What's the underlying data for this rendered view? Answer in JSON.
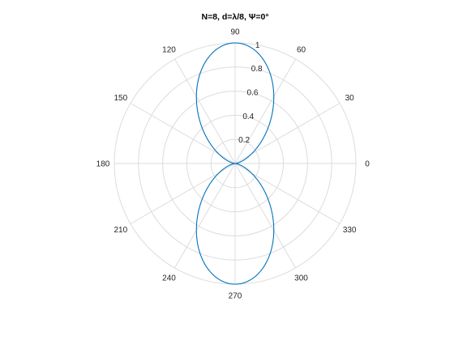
{
  "chart_data": {
    "type": "polar-line",
    "title": "N=8, d=λ/8, Ψ=0°",
    "theta_ticks_deg": [
      0,
      30,
      60,
      90,
      120,
      150,
      180,
      210,
      240,
      270,
      300,
      330
    ],
    "theta_tick_labels": [
      "0",
      "30",
      "60",
      "90",
      "120",
      "150",
      "180",
      "210",
      "240",
      "270",
      "300",
      "330"
    ],
    "r_ticks": [
      0.2,
      0.4,
      0.6,
      0.8,
      1
    ],
    "r_tick_labels": [
      "0.2",
      "0.4",
      "0.6",
      "0.8",
      "1"
    ],
    "rlim": [
      0,
      1
    ],
    "r_label_angle_deg": 80,
    "grid": true,
    "series": [
      {
        "color": "#0072BD",
        "formula": "normalized array factor |sin(N*psi/2)/(N*sin(psi/2))|, psi = k*d*cos(theta)",
        "N": 8,
        "d_over_lambda": 0.125,
        "psi_deg": 0,
        "theta_deg": [
          0,
          15,
          30,
          45,
          60,
          75,
          90,
          105,
          120,
          135,
          150,
          165,
          180,
          195,
          210,
          225,
          240,
          255,
          270,
          285,
          300,
          315,
          330,
          345
        ],
        "r": [
          0.0,
          0.03,
          0.13,
          0.37,
          0.65,
          0.91,
          1.0,
          0.91,
          0.65,
          0.37,
          0.13,
          0.03,
          0.0,
          0.03,
          0.13,
          0.37,
          0.65,
          0.91,
          1.0,
          0.91,
          0.65,
          0.37,
          0.13,
          0.03
        ]
      }
    ]
  }
}
